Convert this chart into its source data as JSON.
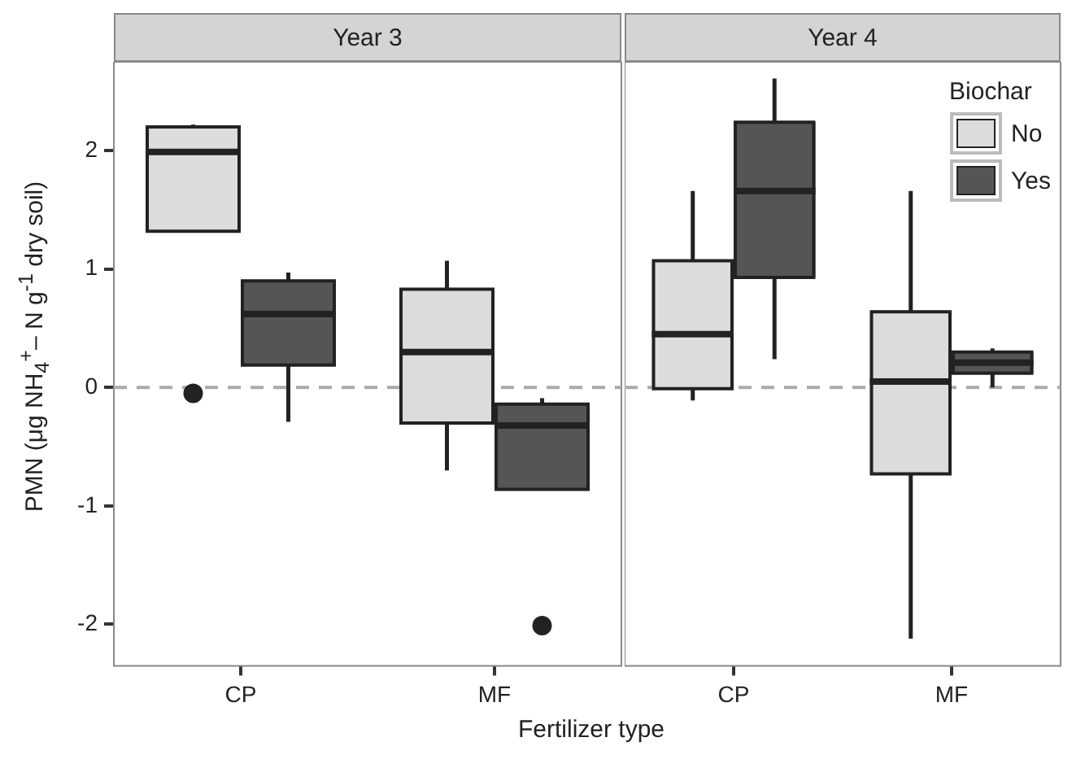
{
  "chart_data": [
    {
      "type": "box",
      "title": "Year 3",
      "categories": [
        "CP",
        "MF"
      ],
      "xlabel": "Fertilizer type",
      "ylabel": "PMN (μg NH$_{4}$$^{+}$– N g$^{-1}$ dry soil)",
      "ylim": [
        -2.35,
        2.75
      ],
      "yticks": [
        -2,
        -1,
        0,
        1,
        2
      ],
      "grid": false,
      "ref_lines": [
        {
          "axis": "y",
          "value": 0,
          "color": "#aaaaaa",
          "line_style": "dashed"
        }
      ],
      "series": [
        {
          "color": "#dcdcdc",
          "boxes": [
            {
              "low": 1.32,
              "q1": 1.32,
              "median": 1.99,
              "q3": 2.2,
              "high": 2.22,
              "outliers": [
                -0.05
              ]
            },
            {
              "low": -0.7,
              "q1": -0.3,
              "median": 0.3,
              "q3": 0.83,
              "high": 1.07
            }
          ]
        },
        {
          "color": "#555555",
          "boxes": [
            {
              "low": -0.29,
              "q1": 0.19,
              "median": 0.62,
              "q3": 0.9,
              "high": 0.97
            },
            {
              "low": -0.86,
              "q1": -0.86,
              "median": -0.32,
              "q3": -0.14,
              "high": -0.09,
              "outliers": [
                -2.01
              ]
            }
          ]
        }
      ]
    },
    {
      "type": "box",
      "title": "Year 4",
      "categories": [
        "CP",
        "MF"
      ],
      "ylim": [
        -2.35,
        2.75
      ],
      "yticks": [
        -2,
        -1,
        0,
        1,
        2
      ],
      "grid": false,
      "tick_labels": "x",
      "legend": "top right",
      "legend_title": "Biochar",
      "ref_lines": [
        {
          "axis": "y",
          "value": 0,
          "color": "#aaaaaa",
          "line_style": "dashed"
        }
      ],
      "series": [
        {
          "name": "No",
          "color": "#dcdcdc",
          "boxes": [
            {
              "low": -0.11,
              "q1": -0.01,
              "median": 0.45,
              "q3": 1.07,
              "high": 1.66
            },
            {
              "low": -2.12,
              "q1": -0.73,
              "median": 0.05,
              "q3": 0.64,
              "high": 1.66
            }
          ]
        },
        {
          "name": "Yes",
          "color": "#555555",
          "boxes": [
            {
              "low": 0.24,
              "q1": 0.93,
              "median": 1.66,
              "q3": 2.24,
              "high": 2.61
            },
            {
              "low": 0.0,
              "q1": 0.12,
              "median": 0.21,
              "q3": 0.3,
              "high": 0.33
            }
          ]
        }
      ]
    }
  ]
}
